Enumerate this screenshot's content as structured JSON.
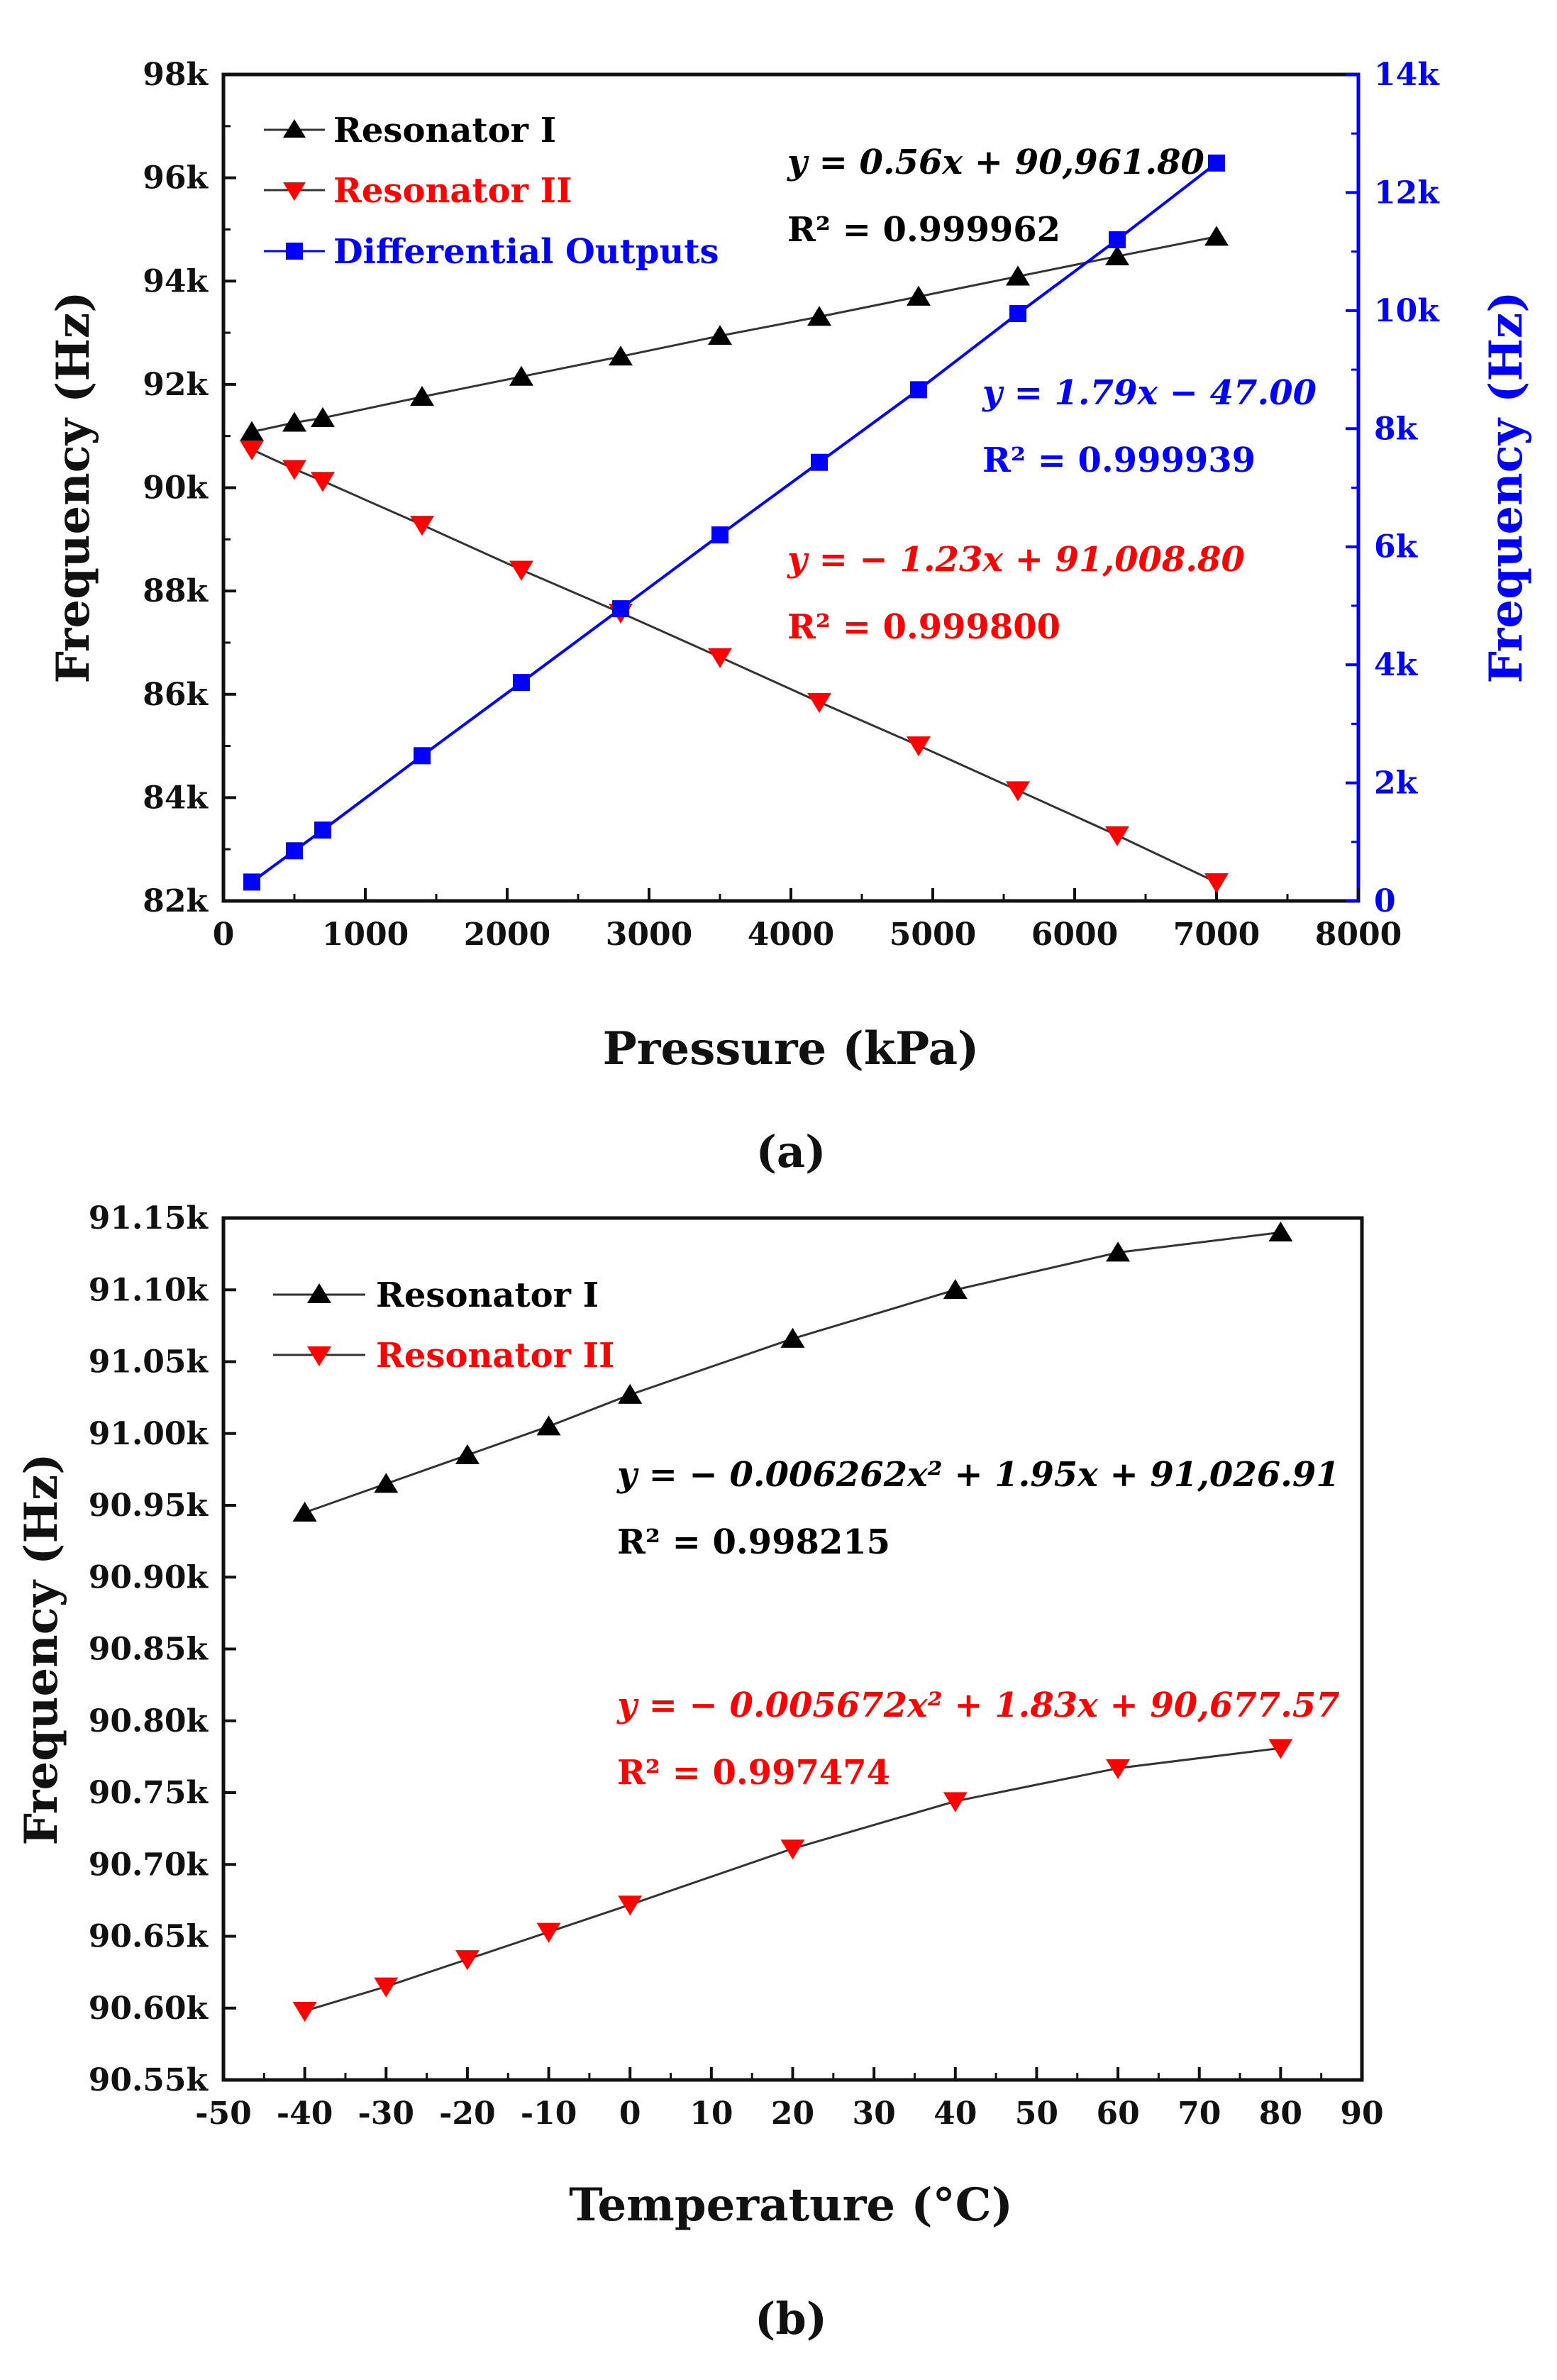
{
  "chart_data": [
    {
      "type": "line",
      "panel_label": "(a)",
      "xlabel": "Pressure (kPa)",
      "ylabel": "Frequency (Hz)",
      "y2label": "Frequency (Hz)",
      "xlim": [
        0,
        8000
      ],
      "ylim": [
        82000,
        98000
      ],
      "y2lim": [
        0,
        14000
      ],
      "xticks": [
        0,
        1000,
        2000,
        3000,
        4000,
        5000,
        6000,
        7000,
        8000
      ],
      "xtick_labels": [
        "0",
        "1000",
        "2000",
        "3000",
        "4000",
        "5000",
        "6000",
        "7000",
        "8000"
      ],
      "yticks": [
        82000,
        84000,
        86000,
        88000,
        90000,
        92000,
        94000,
        96000,
        98000
      ],
      "ytick_labels": [
        "82k",
        "84k",
        "86k",
        "88k",
        "90k",
        "92k",
        "94k",
        "96k",
        "98k"
      ],
      "y2ticks": [
        0,
        2000,
        4000,
        6000,
        8000,
        10000,
        12000,
        14000
      ],
      "y2tick_labels": [
        "0",
        "2k",
        "4k",
        "6k",
        "8k",
        "10k",
        "12k",
        "14k"
      ],
      "legend_position": "top-left",
      "series": [
        {
          "name": "Resonator I",
          "marker": "triangle-up",
          "color": "#000000",
          "line_color": "#333333",
          "axis": "left",
          "x": [
            200,
            500,
            700,
            1400,
            2100,
            2800,
            3500,
            4200,
            4900,
            5600,
            6300,
            7000
          ],
          "values": [
            91080,
            91260,
            91350,
            91760,
            92150,
            92540,
            92940,
            93310,
            93700,
            94090,
            94480,
            94860
          ]
        },
        {
          "name": "Resonator II",
          "marker": "triangle-down",
          "color": "#ff0000",
          "line_color": "#333333",
          "axis": "left",
          "x": [
            200,
            500,
            700,
            1400,
            2100,
            2800,
            3500,
            4200,
            4900,
            5600,
            6300,
            7000
          ],
          "values": [
            90740,
            90360,
            90130,
            89280,
            88410,
            87580,
            86720,
            85850,
            85010,
            84140,
            83270,
            82360
          ]
        },
        {
          "name": "Differential Outputs",
          "marker": "square",
          "color": "#0000ff",
          "line_color": "#0000ff",
          "axis": "right",
          "x": [
            200,
            500,
            700,
            1400,
            2100,
            2800,
            3500,
            4200,
            4900,
            5600,
            6300,
            7000
          ],
          "values": [
            320,
            850,
            1200,
            2460,
            3700,
            4950,
            6200,
            7430,
            8660,
            9950,
            11200,
            12500
          ]
        }
      ],
      "annotations": [
        {
          "text": "y = 0.56x + 90,961.80",
          "color": "#000000"
        },
        {
          "text": "R² = 0.999962",
          "color": "#000000"
        },
        {
          "text": "y = 1.79x − 47.00",
          "color": "#0000ff"
        },
        {
          "text": "R² = 0.999939",
          "color": "#0000ff"
        },
        {
          "text": "y = − 1.23x + 91,008.80",
          "color": "#ff0000"
        },
        {
          "text": "R² = 0.999800",
          "color": "#ff0000"
        }
      ]
    },
    {
      "type": "line",
      "panel_label": "(b)",
      "xlabel": "Temperature (°C)",
      "ylabel": "Frequency (Hz)",
      "xlim": [
        -50,
        90
      ],
      "ylim": [
        90550,
        91150
      ],
      "xticks": [
        -50,
        -40,
        -30,
        -20,
        -10,
        0,
        10,
        20,
        30,
        40,
        50,
        60,
        70,
        80,
        90
      ],
      "xtick_labels": [
        "-50",
        "-40",
        "-30",
        "-20",
        "-10",
        "0",
        "10",
        "20",
        "30",
        "40",
        "50",
        "60",
        "70",
        "80",
        "90"
      ],
      "yticks": [
        90550,
        90600,
        90650,
        90700,
        90750,
        90800,
        90850,
        90900,
        90950,
        91000,
        91050,
        91100,
        91150
      ],
      "ytick_labels": [
        "90.55k",
        "90.60k",
        "90.65k",
        "90.70k",
        "90.75k",
        "90.80k",
        "90.85k",
        "90.90k",
        "90.95k",
        "91.00k",
        "91.05k",
        "91.10k",
        "91.15k"
      ],
      "legend_position": "top-left",
      "series": [
        {
          "name": "Resonator I",
          "marker": "triangle-up",
          "color": "#000000",
          "line_color": "#333333",
          "axis": "left",
          "x": [
            -40,
            -30,
            -20,
            -10,
            0,
            20,
            40,
            60,
            80
          ],
          "values": [
            90945,
            90965,
            90985,
            91005,
            91027,
            91066,
            91100,
            91126,
            91140
          ]
        },
        {
          "name": "Resonator II",
          "marker": "triangle-down",
          "color": "#ff0000",
          "line_color": "#333333",
          "axis": "left",
          "x": [
            -40,
            -30,
            -20,
            -10,
            0,
            20,
            40,
            60,
            80
          ],
          "values": [
            90598,
            90615,
            90634,
            90653,
            90672,
            90711,
            90744,
            90767,
            90781
          ]
        }
      ],
      "annotations": [
        {
          "text": "y = − 0.006262x² + 1.95x + 91,026.91",
          "color": "#000000"
        },
        {
          "text": "R² = 0.998215",
          "color": "#000000"
        },
        {
          "text": "y = − 0.005672x² + 1.83x + 90,677.57",
          "color": "#ff0000"
        },
        {
          "text": "R² = 0.997474",
          "color": "#ff0000"
        }
      ]
    }
  ]
}
